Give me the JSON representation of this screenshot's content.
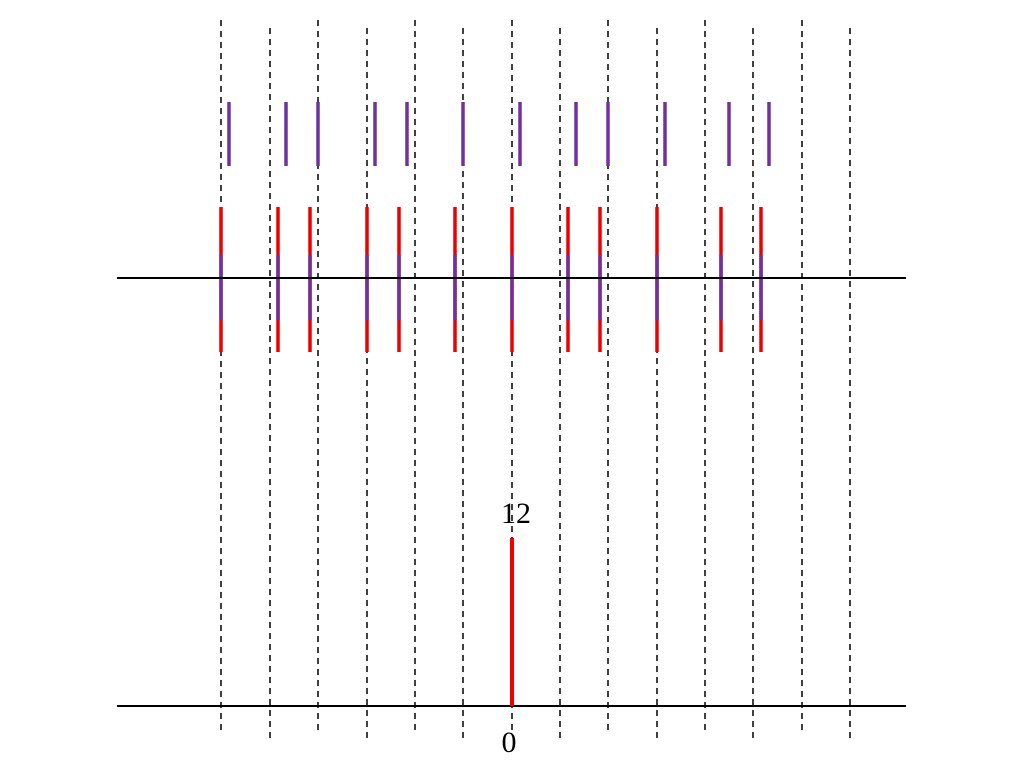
{
  "labels": {
    "top": "12",
    "bottom": "0"
  }
}
